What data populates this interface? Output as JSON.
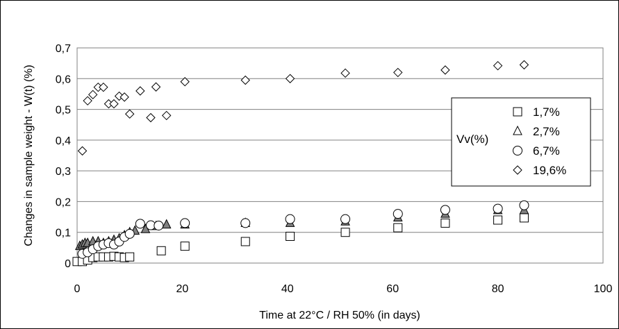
{
  "chart_data": {
    "type": "scatter",
    "title": "",
    "xlabel": "Time at 22°C / RH 50% (in days)",
    "ylabel": "Changes in sample weight - W(t)  (%)",
    "xlim": [
      0,
      100
    ],
    "ylim": [
      0,
      0.7
    ],
    "x_ticks": [
      "0",
      "20",
      "40",
      "60",
      "80",
      "100"
    ],
    "y_ticks": [
      "0",
      "0,1",
      "0,2",
      "0,3",
      "0,4",
      "0,5",
      "0,6",
      "0,7"
    ],
    "grid": "horizontal",
    "legend": {
      "title": "Vv(%)",
      "placement": "right",
      "entries": [
        "1,7%",
        "2,7%",
        "6,7%",
        "19,6%"
      ]
    },
    "series": [
      {
        "name": "1,7%",
        "marker": "square",
        "fill": "#ffffff",
        "x": [
          0,
          1,
          2,
          3,
          4,
          5,
          6,
          7,
          8,
          9,
          10,
          16,
          20.5,
          32,
          40.5,
          51,
          61,
          70,
          80,
          85
        ],
        "y": [
          0.005,
          0.005,
          0.01,
          0.018,
          0.02,
          0.02,
          0.02,
          0.022,
          0.02,
          0.018,
          0.02,
          0.04,
          0.055,
          0.07,
          0.087,
          0.1,
          0.115,
          0.13,
          0.14,
          0.147
        ]
      },
      {
        "name": "2,7%",
        "marker": "triangle",
        "fill": "#808080",
        "x": [
          0.5,
          1,
          1.5,
          2,
          3,
          4,
          5,
          6,
          7,
          8,
          9,
          10,
          11,
          13,
          15,
          17,
          20.5,
          32,
          40.5,
          51,
          61,
          70,
          80,
          85
        ],
        "y": [
          0.055,
          0.06,
          0.065,
          0.065,
          0.07,
          0.07,
          0.065,
          0.07,
          0.075,
          0.08,
          0.09,
          0.1,
          0.105,
          0.11,
          0.12,
          0.125,
          0.125,
          0.13,
          0.13,
          0.135,
          0.148,
          0.16,
          0.172,
          0.172
        ]
      },
      {
        "name": "6,7%",
        "marker": "circle",
        "fill": "#ffffff",
        "x": [
          1,
          2,
          3,
          4,
          5,
          6,
          7,
          8,
          9,
          10,
          12,
          14,
          15.5,
          20.5,
          32,
          40.5,
          51,
          61,
          70,
          80,
          85
        ],
        "y": [
          0.03,
          0.035,
          0.045,
          0.055,
          0.06,
          0.065,
          0.06,
          0.07,
          0.085,
          0.095,
          0.128,
          0.123,
          0.122,
          0.13,
          0.13,
          0.143,
          0.143,
          0.16,
          0.173,
          0.177,
          0.188
        ]
      },
      {
        "name": "19,6%",
        "marker": "diamond",
        "fill": "#ffffff",
        "x": [
          1,
          2,
          3,
          4,
          5,
          6,
          7,
          8,
          9,
          10,
          12,
          14,
          15,
          17,
          20.5,
          32,
          40.5,
          51,
          61,
          70,
          80,
          85
        ],
        "y": [
          0.365,
          0.528,
          0.548,
          0.572,
          0.572,
          0.518,
          0.518,
          0.543,
          0.54,
          0.485,
          0.56,
          0.473,
          0.573,
          0.48,
          0.59,
          0.595,
          0.6,
          0.618,
          0.62,
          0.628,
          0.642,
          0.645
        ]
      }
    ]
  }
}
